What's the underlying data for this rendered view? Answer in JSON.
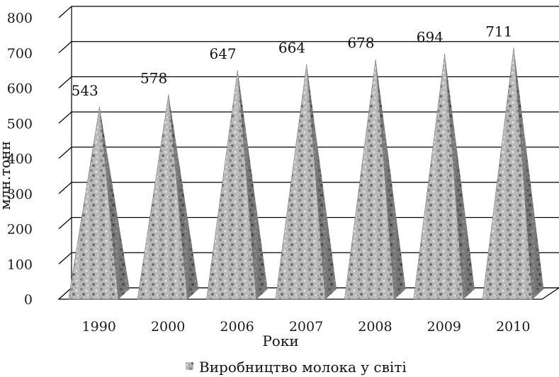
{
  "chart_data": {
    "type": "bar",
    "bar_shape": "pyramid",
    "categories": [
      "1990",
      "2000",
      "2006",
      "2007",
      "2008",
      "2009",
      "2010"
    ],
    "series": [
      {
        "name": "Виробництво молока у світі",
        "values": [
          543,
          578,
          647,
          664,
          678,
          694,
          711
        ]
      }
    ],
    "data_labels": [
      "543",
      "578",
      "647",
      "664",
      "678",
      "694",
      "711"
    ],
    "y_ticks": [
      "0",
      "100",
      "200",
      "300",
      "400",
      "500",
      "600",
      "700",
      "800"
    ],
    "ylim": [
      0,
      800
    ],
    "xlabel": "Роки",
    "ylabel": "млн.тонн",
    "grid": true,
    "legend_position": "bottom",
    "colors": {
      "pyramid_light": "#d2d2d2",
      "pyramid_dark": "#4a4a4a",
      "grid": "#000000",
      "floor": "#000000"
    }
  }
}
